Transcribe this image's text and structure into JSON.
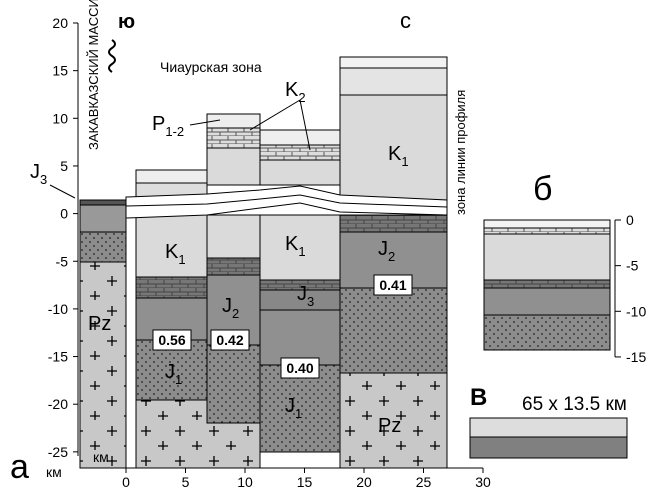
{
  "left_axis": {
    "unit": "км",
    "ticks": [
      20,
      15,
      10,
      5,
      0,
      -5,
      -10,
      -15,
      -20,
      -25
    ]
  },
  "x_axis": {
    "unit": "км",
    "ticks": [
      0,
      5,
      10,
      15,
      20,
      25,
      30
    ]
  },
  "inset_b_axis": {
    "ticks": [
      0,
      -5,
      -10,
      -15
    ]
  },
  "labels": {
    "south": "ю",
    "north": "с",
    "massif": "ЗАКАВКАЗСКИЙ МАССИВ",
    "zone": "Чиаурская зона",
    "profile_zone": "зона линии профиля",
    "panel_a": "а",
    "panel_b": "б",
    "panel_v": "В",
    "scale": "65 x 13.5 км"
  },
  "units": [
    {
      "base": "J",
      "sub": "3"
    },
    {
      "base": "P",
      "sub": "1-2"
    },
    {
      "base": "K",
      "sub": "2"
    },
    {
      "base": "K",
      "sub": "1"
    },
    {
      "base": "K",
      "sub": "1"
    },
    {
      "base": "K",
      "sub": "1"
    },
    {
      "base": "J",
      "sub": "2"
    },
    {
      "base": "J",
      "sub": "3"
    },
    {
      "base": "J",
      "sub": "2"
    },
    {
      "base": "Pz",
      "sub": ""
    },
    {
      "base": "J",
      "sub": "1"
    },
    {
      "base": "J",
      "sub": "1"
    },
    {
      "base": "Pz",
      "sub": ""
    }
  ],
  "density": [
    "0.56",
    "0.42",
    "0.40",
    "0.41"
  ]
}
